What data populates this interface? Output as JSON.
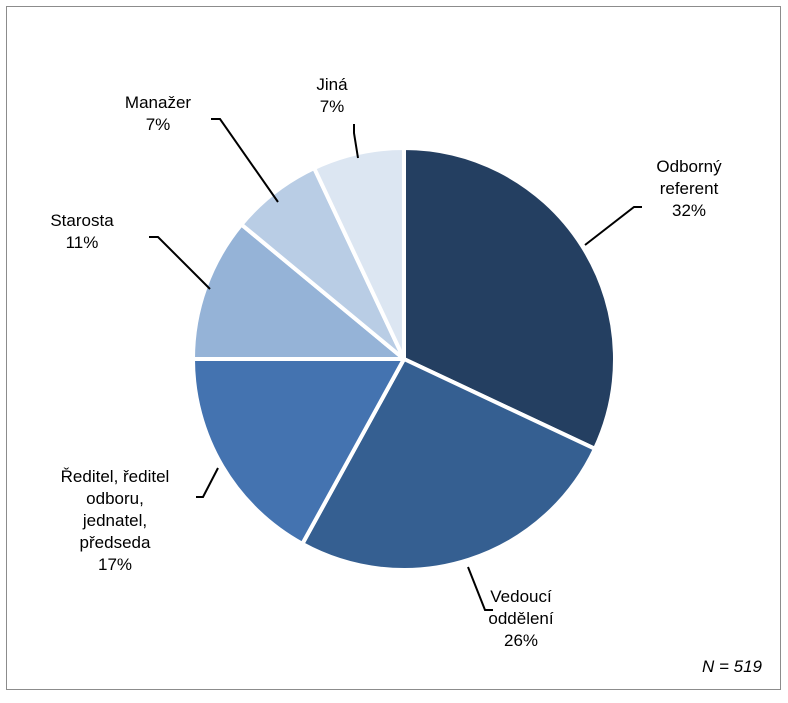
{
  "chart_data": {
    "type": "pie",
    "note": "N = 519",
    "slices": [
      {
        "label": [
          "Odborný",
          "referent",
          "32%"
        ],
        "value": 32,
        "color": "#243f61"
      },
      {
        "label": [
          "Vedoucí",
          "oddělení",
          "26%"
        ],
        "value": 26,
        "color": "#355f91"
      },
      {
        "label": [
          "Ředitel, ředitel",
          "odboru,",
          "jednatel,",
          "předseda",
          "17%"
        ],
        "value": 17,
        "color": "#4473b0"
      },
      {
        "label": [
          "Starosta",
          "11%"
        ],
        "value": 11,
        "color": "#95b3d7"
      },
      {
        "label": [
          "Manažer",
          "7%"
        ],
        "value": 7,
        "color": "#b9cde5"
      },
      {
        "label": [
          "Jiná",
          "7%"
        ],
        "value": 7,
        "color": "#dce6f2"
      }
    ]
  }
}
